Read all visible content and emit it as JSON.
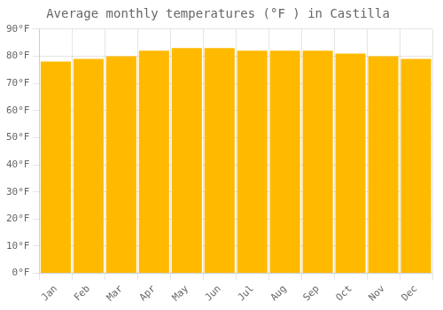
{
  "chart_data": {
    "type": "bar",
    "title": "Average monthly temperatures (°F ) in Castilla",
    "categories": [
      "Jan",
      "Feb",
      "Mar",
      "Apr",
      "May",
      "Jun",
      "Jul",
      "Aug",
      "Sep",
      "Oct",
      "Nov",
      "Dec"
    ],
    "values": [
      78,
      79,
      80,
      82,
      83,
      83,
      82,
      82,
      82,
      81,
      80,
      79
    ],
    "color": "#FFBA00",
    "ylim": [
      0,
      90
    ],
    "yticks": [
      {
        "value": 0,
        "label": "0°F"
      },
      {
        "value": 10,
        "label": "10°F"
      },
      {
        "value": 20,
        "label": "20°F"
      },
      {
        "value": 30,
        "label": "30°F"
      },
      {
        "value": 40,
        "label": "40°F"
      },
      {
        "value": 50,
        "label": "50°F"
      },
      {
        "value": 60,
        "label": "60°F"
      },
      {
        "value": 70,
        "label": "70°F"
      },
      {
        "value": 80,
        "label": "80°F"
      },
      {
        "value": 90,
        "label": "90°F"
      }
    ],
    "grid": true
  }
}
